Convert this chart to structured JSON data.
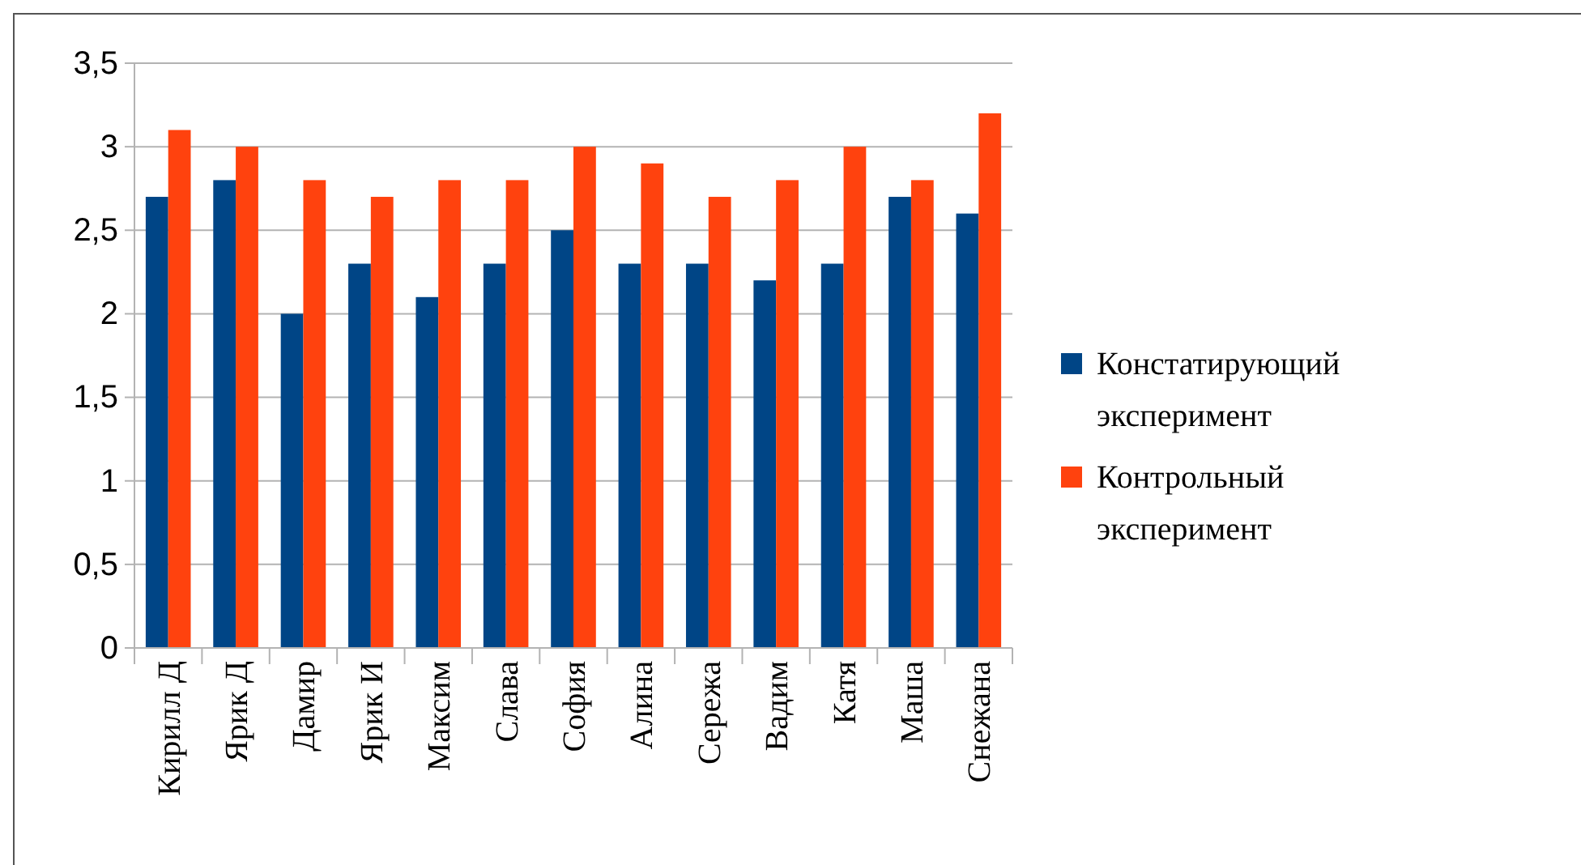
{
  "chart_data": {
    "type": "bar",
    "categories": [
      "Кирилл Д",
      "Ярик Д",
      "Дамир",
      "Ярик И",
      "Максим",
      "Слава",
      "София",
      "Алина",
      "Сережа",
      "Вадим",
      "Катя",
      "Маша",
      "Снежана"
    ],
    "series": [
      {
        "name": "Констатирующий эксперимент",
        "color": "#004586",
        "values": [
          2.7,
          2.8,
          2.0,
          2.3,
          2.1,
          2.3,
          2.5,
          2.3,
          2.3,
          2.2,
          2.3,
          2.7,
          2.6
        ]
      },
      {
        "name": "Контрольный эксперимент",
        "color": "#ff420e",
        "values": [
          3.1,
          3.0,
          2.8,
          2.7,
          2.8,
          2.8,
          3.0,
          2.9,
          2.7,
          2.8,
          3.0,
          2.8,
          3.2
        ]
      }
    ],
    "ylim": [
      0,
      3.5
    ],
    "yticks": [
      {
        "value": 0,
        "label": "0"
      },
      {
        "value": 0.5,
        "label": "0,5"
      },
      {
        "value": 1,
        "label": "1"
      },
      {
        "value": 1.5,
        "label": "1,5"
      },
      {
        "value": 2,
        "label": "2"
      },
      {
        "value": 2.5,
        "label": "2,5"
      },
      {
        "value": 3,
        "label": "3"
      },
      {
        "value": 3.5,
        "label": "3,5"
      }
    ],
    "grid": "y",
    "legend": "right"
  }
}
